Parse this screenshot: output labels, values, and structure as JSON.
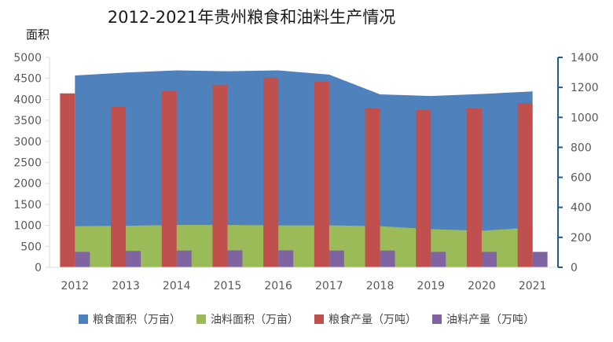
{
  "chart_data": {
    "type": "area",
    "title": "2012-2021年贵州粮食和油料生产情况",
    "ylabel": "面积",
    "categories": [
      "2012",
      "2013",
      "2014",
      "2015",
      "2016",
      "2017",
      "2018",
      "2019",
      "2020",
      "2021"
    ],
    "left_axis": {
      "ylim": [
        0,
        5000
      ],
      "ticks": [
        "0",
        "500",
        "1000",
        "1500",
        "2000",
        "2500",
        "3000",
        "3500",
        "4000",
        "4500",
        "5000"
      ]
    },
    "right_axis": {
      "ylim": [
        0,
        1400
      ],
      "ticks": [
        "0",
        "200",
        "400",
        "600",
        "800",
        "1000",
        "1200",
        "1400"
      ]
    },
    "series": [
      {
        "name": "粮食面积（万亩）",
        "type": "area",
        "axis": "left",
        "color": "#4F81BD",
        "values": [
          4570,
          4640,
          4690,
          4670,
          4690,
          4590,
          4120,
          4080,
          4130,
          4190
        ]
      },
      {
        "name": "油料面积（万亩）",
        "type": "area",
        "axis": "left",
        "color": "#9BBB59",
        "values": [
          980,
          990,
          1010,
          1010,
          1000,
          1000,
          980,
          910,
          870,
          950
        ]
      },
      {
        "name": "粮食产量（万吨）",
        "type": "bar",
        "axis": "right",
        "color": "#C0504D",
        "values": [
          1160,
          1070,
          1175,
          1215,
          1265,
          1240,
          1060,
          1050,
          1060,
          1095
        ]
      },
      {
        "name": "油料产量（万吨）",
        "type": "bar",
        "axis": "right",
        "color": "#8064A2",
        "values": [
          103,
          109,
          112,
          113,
          113,
          112,
          112,
          103,
          103,
          103
        ]
      }
    ],
    "grid": false,
    "legend": "bottom"
  }
}
